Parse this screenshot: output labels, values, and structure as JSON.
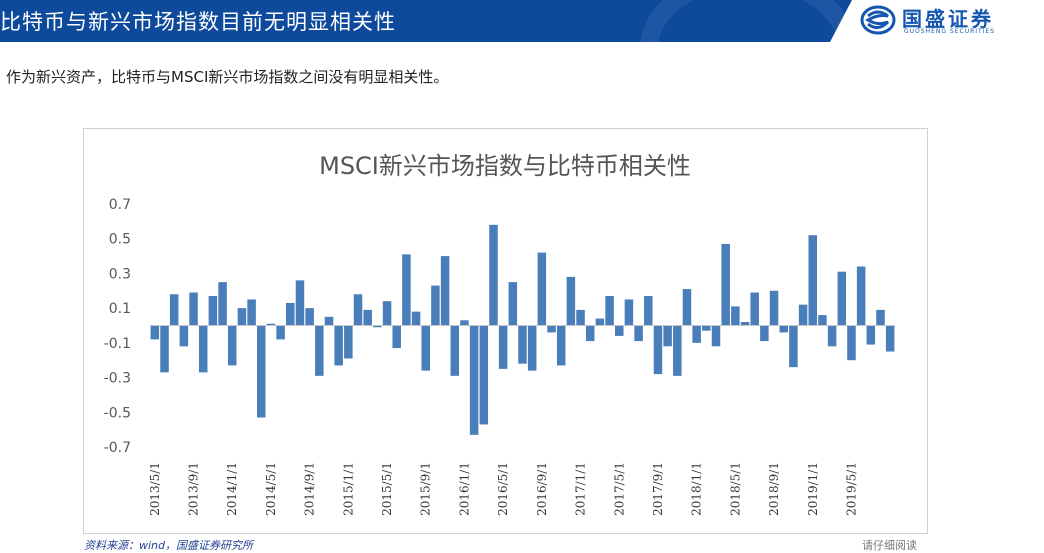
{
  "header": {
    "title": "比特币与新兴市场指数目前无明显相关性",
    "brand_name": "国盛证券",
    "brand_sub": "GUOSHENG SECURITIES"
  },
  "intro": {
    "text": "作为新兴资产，比特币与MSCI新兴市场指数之间没有明显相关性。"
  },
  "source": {
    "text": "资料来源：wind，国盛证券研究所"
  },
  "footer": {
    "note": "请仔细阅读"
  },
  "colors": {
    "bar": "#4a7ebb",
    "header_bg": "#0e4a9c",
    "brand_text": "#1456b0"
  },
  "chart_data": {
    "type": "bar",
    "title": "MSCI新兴市场指数与比特币相关性",
    "xlabel": "",
    "ylabel": "",
    "ylim": [
      -0.7,
      0.7
    ],
    "yticks": [
      0.7,
      0.5,
      0.3,
      0.1,
      -0.1,
      -0.3,
      -0.5,
      -0.7
    ],
    "grid": false,
    "legend": "none",
    "x_start": "2013/5",
    "x_step_months": 1,
    "tick_labels": [
      "2013/5/1",
      "2013/9/1",
      "2014/1/1",
      "2014/5/1",
      "2014/9/1",
      "2015/1/1",
      "2015/5/1",
      "2015/9/1",
      "2016/1/1",
      "2016/5/1",
      "2016/9/1",
      "2017/1/1",
      "2017/5/1",
      "2017/9/1",
      "2018/1/1",
      "2018/5/1",
      "2018/9/1",
      "2019/1/1",
      "2019/5/1"
    ],
    "tick_every": 4,
    "values": [
      -0.08,
      -0.27,
      0.18,
      -0.12,
      0.19,
      -0.27,
      0.17,
      0.25,
      -0.23,
      0.1,
      0.15,
      -0.53,
      0.01,
      -0.08,
      0.13,
      0.26,
      0.1,
      -0.29,
      0.05,
      -0.23,
      -0.19,
      0.18,
      0.09,
      -0.01,
      0.14,
      -0.13,
      0.41,
      0.08,
      -0.26,
      0.23,
      0.4,
      -0.29,
      0.03,
      -0.63,
      -0.57,
      0.58,
      -0.25,
      0.25,
      -0.22,
      -0.26,
      0.42,
      -0.04,
      -0.23,
      0.28,
      0.09,
      -0.09,
      0.04,
      0.17,
      -0.06,
      0.15,
      -0.09,
      0.17,
      -0.28,
      -0.12,
      -0.29,
      0.21,
      -0.1,
      -0.03,
      -0.12,
      0.47,
      0.11,
      0.02,
      0.19,
      -0.09,
      0.2,
      -0.04,
      -0.24,
      0.12,
      0.52,
      0.06,
      -0.12,
      0.31,
      -0.2,
      0.34,
      -0.11,
      0.09,
      -0.15
    ]
  }
}
